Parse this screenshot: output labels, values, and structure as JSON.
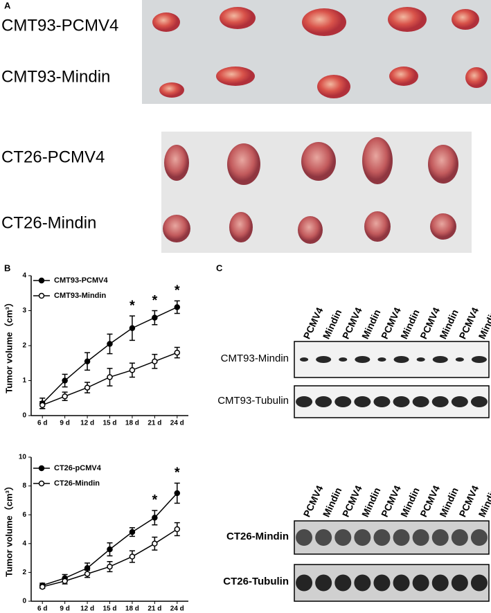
{
  "panel_labels": [
    "A",
    "B",
    "C"
  ],
  "photo_labels": [
    "CMT93-PCMV4",
    "CMT93-Mindin",
    "CT26-PCMV4",
    "CT26-Mindin"
  ],
  "chart_data": [
    {
      "type": "line",
      "ylabel": "Tumor volume（cm³）",
      "categories": [
        "6 d",
        "9 d",
        "12 d",
        "15 d",
        "18 d",
        "21 d",
        "24 d"
      ],
      "ylim": [
        0,
        4
      ],
      "yticks": [
        0,
        1,
        2,
        3,
        4
      ],
      "series": [
        {
          "name": "CMT93-PCMV4",
          "color": "#000",
          "marker": "filled",
          "values": [
            0.35,
            1.0,
            1.55,
            2.05,
            2.5,
            2.8,
            3.1
          ],
          "errors": [
            0.15,
            0.18,
            0.25,
            0.28,
            0.35,
            0.2,
            0.18
          ]
        },
        {
          "name": "CMT93-Mindin",
          "color": "#000",
          "marker": "open",
          "values": [
            0.3,
            0.55,
            0.8,
            1.1,
            1.3,
            1.55,
            1.8
          ],
          "errors": [
            0.1,
            0.12,
            0.15,
            0.25,
            0.2,
            0.2,
            0.15
          ]
        }
      ],
      "annotations": [
        {
          "text": "*",
          "x": "18 d"
        },
        {
          "text": "*",
          "x": "21 d"
        },
        {
          "text": "*",
          "x": "24 d"
        }
      ]
    },
    {
      "type": "line",
      "ylabel": "Tumor volume（cm³）",
      "categories": [
        "6 d",
        "9 d",
        "12 d",
        "15 d",
        "18 d",
        "21 d",
        "24 d"
      ],
      "ylim": [
        0,
        10
      ],
      "yticks": [
        0,
        2,
        4,
        6,
        8,
        10
      ],
      "series": [
        {
          "name": "CT26-pCMV4",
          "color": "#000",
          "marker": "filled",
          "values": [
            1.1,
            1.6,
            2.3,
            3.6,
            4.8,
            5.8,
            7.5
          ],
          "errors": [
            0.15,
            0.25,
            0.35,
            0.45,
            0.3,
            0.5,
            0.7
          ]
        },
        {
          "name": "CT26-Mindin",
          "color": "#000",
          "marker": "open",
          "values": [
            1.0,
            1.4,
            1.9,
            2.4,
            3.1,
            4.0,
            5.0
          ],
          "errors": [
            0.1,
            0.2,
            0.25,
            0.35,
            0.4,
            0.45,
            0.45
          ]
        }
      ],
      "annotations": [
        {
          "text": "*",
          "x": "21 d"
        },
        {
          "text": "*",
          "x": "24 d"
        }
      ]
    }
  ],
  "blots": [
    {
      "lanes": [
        "PCMV4",
        "Mindin",
        "PCMV4",
        "Mindin",
        "PCMV4",
        "Mindin",
        "PCMV4",
        "Mindin",
        "PCMV4",
        "Mindin"
      ],
      "rows": [
        "CMT93-Mindin",
        "CMT93-Tubulin"
      ]
    },
    {
      "lanes": [
        "PCMV4",
        "Mindin",
        "PCMV4",
        "Mindin",
        "PCMV4",
        "Mindin",
        "PCMV4",
        "Mindin",
        "PCMV4",
        "Mindin"
      ],
      "rows": [
        "CT26-Mindin",
        "CT26-Tubulin"
      ]
    }
  ]
}
